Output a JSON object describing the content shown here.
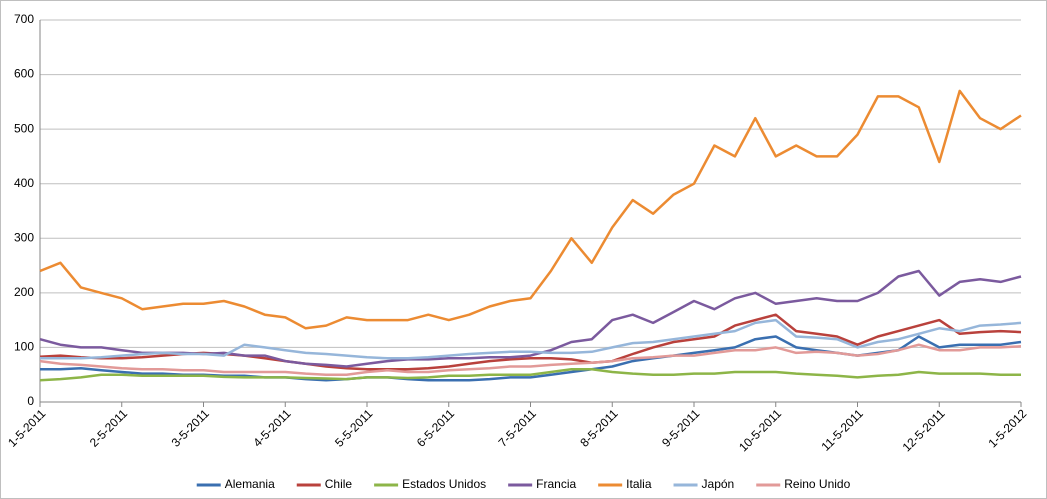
{
  "chart_data": {
    "type": "line",
    "categories": [
      "1-5-2011",
      null,
      null,
      null,
      "2-5-2011",
      null,
      null,
      null,
      "3-5-2011",
      null,
      null,
      null,
      "4-5-2011",
      null,
      null,
      null,
      "5-5-2011",
      null,
      null,
      null,
      "6-5-2011",
      null,
      null,
      null,
      "7-5-2011",
      null,
      null,
      null,
      "8-5-2011",
      null,
      null,
      null,
      "9-5-2011",
      null,
      null,
      null,
      "10-5-2011",
      null,
      null,
      null,
      "11-5-2011",
      null,
      null,
      null,
      "12-5-2011",
      null,
      null,
      null,
      "1-5-2012"
    ],
    "series": [
      {
        "name": "Alemania",
        "color": "#3a6fb0",
        "values": [
          60,
          60,
          62,
          58,
          55,
          52,
          52,
          50,
          50,
          48,
          48,
          45,
          45,
          42,
          40,
          42,
          45,
          45,
          42,
          40,
          40,
          40,
          42,
          45,
          45,
          50,
          55,
          60,
          65,
          75,
          80,
          85,
          90,
          95,
          100,
          115,
          120,
          100,
          95,
          90,
          85,
          90,
          95,
          120,
          100,
          105,
          105,
          105,
          110
        ]
      },
      {
        "name": "Chile",
        "color": "#b9413c",
        "values": [
          83,
          85,
          82,
          80,
          80,
          82,
          85,
          88,
          90,
          88,
          85,
          80,
          75,
          70,
          65,
          62,
          60,
          60,
          60,
          62,
          65,
          70,
          75,
          78,
          80,
          80,
          78,
          72,
          75,
          88,
          100,
          110,
          115,
          120,
          140,
          150,
          160,
          130,
          125,
          120,
          105,
          120,
          130,
          140,
          150,
          125,
          128,
          130,
          128
        ]
      },
      {
        "name": "Estados Unidos",
        "color": "#8db548",
        "values": [
          40,
          42,
          45,
          50,
          50,
          48,
          48,
          48,
          48,
          46,
          45,
          45,
          45,
          44,
          43,
          42,
          45,
          45,
          44,
          45,
          48,
          48,
          50,
          50,
          50,
          55,
          60,
          60,
          55,
          52,
          50,
          50,
          52,
          52,
          55,
          55,
          55,
          52,
          50,
          48,
          45,
          48,
          50,
          55,
          52,
          52,
          52,
          50,
          50
        ]
      },
      {
        "name": "Francia",
        "color": "#7b5a9e",
        "values": [
          115,
          105,
          100,
          100,
          95,
          90,
          90,
          90,
          88,
          90,
          85,
          85,
          75,
          70,
          68,
          65,
          70,
          75,
          78,
          78,
          80,
          80,
          82,
          82,
          85,
          95,
          110,
          115,
          150,
          160,
          145,
          165,
          185,
          170,
          190,
          200,
          180,
          185,
          190,
          185,
          185,
          200,
          230,
          240,
          195,
          220,
          225,
          220,
          230
        ]
      },
      {
        "name": "Italia",
        "color": "#ec8b32",
        "values": [
          240,
          255,
          210,
          200,
          190,
          170,
          175,
          180,
          180,
          185,
          175,
          160,
          155,
          135,
          140,
          155,
          150,
          150,
          150,
          160,
          150,
          160,
          175,
          185,
          190,
          240,
          300,
          255,
          320,
          370,
          345,
          380,
          400,
          470,
          450,
          520,
          450,
          470,
          450,
          450,
          490,
          560,
          560,
          540,
          440,
          570,
          520,
          500,
          525
        ]
      },
      {
        "name": "Japón",
        "color": "#96b6da",
        "values": [
          80,
          80,
          80,
          82,
          85,
          88,
          90,
          88,
          88,
          85,
          105,
          100,
          95,
          90,
          88,
          85,
          82,
          80,
          80,
          82,
          85,
          88,
          90,
          92,
          92,
          90,
          90,
          92,
          100,
          108,
          110,
          115,
          120,
          125,
          130,
          145,
          150,
          120,
          118,
          115,
          100,
          110,
          115,
          125,
          135,
          130,
          140,
          142,
          145
        ]
      },
      {
        "name": "Reino Unido",
        "color": "#e29a98",
        "values": [
          75,
          70,
          68,
          65,
          62,
          60,
          60,
          58,
          58,
          55,
          55,
          55,
          55,
          52,
          50,
          50,
          55,
          58,
          55,
          55,
          58,
          60,
          62,
          65,
          65,
          68,
          70,
          72,
          75,
          80,
          82,
          85,
          85,
          90,
          95,
          95,
          100,
          90,
          92,
          90,
          85,
          88,
          95,
          105,
          95,
          95,
          100,
          100,
          102
        ]
      }
    ],
    "ylim": [
      0,
      700
    ],
    "yticks": [
      0,
      100,
      200,
      300,
      400,
      500,
      600,
      700
    ],
    "grid": true,
    "legend": "bottom"
  }
}
